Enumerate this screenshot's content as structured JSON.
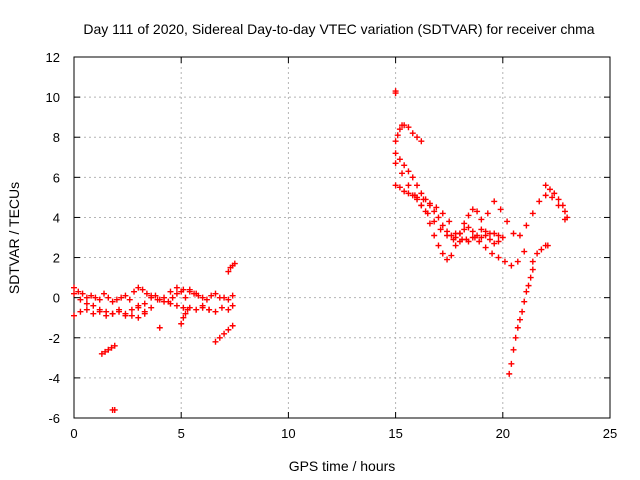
{
  "chart_data": {
    "type": "scatter",
    "title": "Day 111 of 2020, Sidereal Day-to-day VTEC variation (SDTVAR) for receiver chma",
    "xlabel": "GPS time / hours",
    "ylabel": "SDTVAR / TECUs",
    "xlim": [
      0,
      25
    ],
    "ylim": [
      -6,
      12
    ],
    "xticks": [
      0,
      5,
      10,
      15,
      20,
      25
    ],
    "yticks": [
      -6,
      -4,
      -2,
      0,
      2,
      4,
      6,
      8,
      10,
      12
    ],
    "grid": true,
    "marker": "+",
    "marker_color": "#ff0000",
    "series": [
      {
        "name": "SDTVAR",
        "x": [
          0.0,
          0.2,
          0.4,
          0.6,
          0.8,
          1.0,
          1.2,
          1.4,
          1.6,
          1.8,
          2.0,
          2.2,
          2.4,
          2.6,
          2.8,
          3.0,
          3.2,
          3.4,
          3.6,
          3.8,
          4.0,
          4.2,
          4.4,
          4.6,
          4.8,
          5.0,
          5.2,
          5.4,
          5.6,
          5.8,
          6.0,
          6.2,
          6.4,
          6.6,
          6.8,
          7.0,
          7.2,
          7.4,
          0.0,
          0.3,
          0.6,
          0.9,
          1.2,
          1.5,
          1.8,
          2.1,
          2.4,
          2.7,
          3.0,
          3.3,
          0.0,
          0.3,
          0.6,
          0.9,
          1.2,
          1.5,
          1.8,
          2.1,
          2.4,
          2.7,
          3.0,
          3.3,
          3.6,
          4.5,
          4.8,
          5.1,
          5.4,
          5.7,
          6.0,
          6.3,
          6.6,
          6.9,
          7.2,
          7.4,
          3.0,
          3.3,
          3.6,
          3.9,
          4.2,
          4.5,
          4.8,
          5.1,
          5.4,
          5.7,
          6.0,
          6.3,
          1.3,
          1.45,
          1.6,
          1.75,
          1.9,
          1.8,
          1.9,
          4.0,
          5.0,
          5.1,
          5.2,
          5.3,
          6.6,
          6.8,
          7.0,
          7.2,
          7.4,
          7.2,
          7.3,
          7.4,
          7.5,
          15.0,
          15.0,
          15.0,
          15.1,
          15.2,
          15.3,
          15.4,
          15.6,
          15.8,
          16.0,
          16.2,
          15.0,
          15.2,
          15.4,
          15.6,
          15.8,
          16.0,
          16.2,
          16.4,
          16.6,
          16.8,
          17.0,
          17.2,
          17.4,
          17.6,
          17.8,
          18.0,
          18.2,
          18.4,
          18.6,
          18.8,
          19.0,
          19.2,
          19.4,
          19.6,
          19.8,
          20.0,
          15.0,
          15.3,
          15.6,
          15.9,
          16.2,
          16.5,
          16.8,
          17.1,
          17.4,
          17.7,
          18.0,
          18.3,
          18.6,
          18.9,
          19.2,
          19.5,
          19.8,
          20.1,
          20.4,
          20.7,
          21.0,
          15.0,
          15.2,
          15.4,
          15.6,
          15.8,
          16.0,
          16.2,
          16.4,
          16.6,
          16.8,
          17.0,
          17.2,
          17.4,
          17.6,
          17.8,
          18.0,
          18.2,
          18.4,
          18.6,
          18.8,
          19.0,
          19.2,
          19.4,
          19.6,
          19.8,
          16.0,
          16.3,
          16.6,
          16.9,
          17.2,
          17.5,
          17.8,
          18.1,
          18.4,
          18.7,
          19.0,
          19.3,
          19.6,
          19.9,
          20.2,
          20.5,
          20.8,
          21.1,
          21.4,
          21.7,
          22.0,
          22.3,
          22.6,
          22.9,
          20.3,
          20.4,
          20.5,
          20.6,
          20.7,
          20.8,
          20.9,
          21.0,
          21.1,
          21.2,
          21.3,
          21.4,
          21.4,
          21.6,
          21.8,
          22.0,
          22.1,
          22.0,
          22.2,
          22.4,
          22.6,
          22.8,
          22.9,
          23.0
        ],
        "y": [
          0.5,
          0.3,
          0.2,
          0.0,
          0.1,
          0.0,
          -0.1,
          0.2,
          0.0,
          -0.2,
          -0.1,
          0.0,
          0.1,
          -0.1,
          0.3,
          0.5,
          0.4,
          0.2,
          0.0,
          0.1,
          -0.1,
          0.0,
          -0.2,
          0.0,
          0.2,
          0.3,
          0.0,
          0.4,
          0.2,
          0.1,
          0.0,
          -0.1,
          0.1,
          0.2,
          0.0,
          0.0,
          -0.1,
          0.1,
          -0.9,
          -0.7,
          -0.6,
          -0.8,
          -0.7,
          -0.9,
          -0.8,
          -0.7,
          -0.9,
          -0.6,
          -0.4,
          -0.8,
          0.2,
          -0.1,
          -0.3,
          -0.4,
          -0.6,
          -0.7,
          -0.8,
          -0.6,
          -0.8,
          -0.9,
          -1.0,
          -0.7,
          -0.5,
          -0.3,
          -0.4,
          -0.5,
          -0.5,
          -0.6,
          -0.5,
          -0.6,
          -0.7,
          -0.5,
          -0.6,
          -0.4,
          -0.5,
          -0.3,
          0.1,
          -0.1,
          -0.2,
          0.3,
          0.5,
          0.4,
          0.3,
          0.2,
          -0.4,
          -0.6,
          -2.8,
          -2.7,
          -2.6,
          -2.5,
          -2.4,
          -5.6,
          -5.6,
          -1.5,
          -1.3,
          -1.0,
          -0.8,
          -0.6,
          -2.2,
          -2.0,
          -1.8,
          -1.6,
          -1.4,
          1.3,
          1.5,
          1.6,
          1.7,
          10.3,
          10.2,
          7.8,
          8.1,
          8.4,
          8.6,
          8.6,
          8.5,
          8.2,
          8.0,
          7.8,
          7.2,
          6.9,
          6.6,
          6.3,
          6.0,
          5.6,
          5.2,
          4.9,
          4.6,
          4.3,
          4.0,
          3.6,
          3.3,
          3.1,
          3.0,
          3.2,
          3.4,
          3.5,
          3.3,
          3.1,
          3.0,
          3.1,
          3.2,
          3.2,
          3.1,
          3.0,
          6.7,
          6.2,
          5.6,
          5.1,
          4.6,
          4.2,
          3.8,
          3.4,
          3.1,
          2.9,
          2.8,
          2.9,
          3.0,
          2.8,
          2.5,
          2.2,
          2.0,
          1.8,
          1.6,
          1.8,
          2.3,
          5.6,
          5.5,
          5.3,
          5.2,
          5.1,
          4.9,
          4.6,
          4.3,
          3.7,
          3.1,
          2.6,
          2.2,
          1.9,
          2.1,
          2.6,
          3.2,
          3.7,
          4.1,
          4.4,
          4.3,
          3.9,
          3.3,
          2.9,
          2.7,
          2.8,
          5.0,
          4.9,
          4.7,
          4.5,
          4.2,
          3.8,
          3.2,
          2.9,
          2.8,
          3.0,
          3.4,
          4.2,
          4.8,
          4.4,
          3.8,
          3.2,
          3.1,
          3.6,
          4.2,
          4.8,
          5.1,
          5.0,
          4.6,
          3.9,
          -3.8,
          -3.3,
          -2.6,
          -2.0,
          -1.5,
          -1.1,
          -0.7,
          -0.2,
          0.3,
          0.6,
          1.0,
          1.4,
          1.8,
          2.2,
          2.4,
          2.6,
          2.6,
          5.6,
          5.4,
          5.2,
          4.9,
          4.6,
          4.3,
          4.0
        ]
      }
    ]
  }
}
